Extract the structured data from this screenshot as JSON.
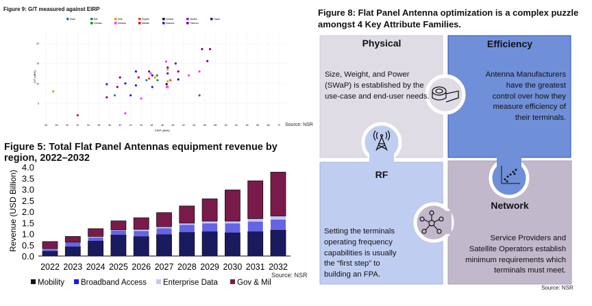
{
  "figure9": {
    "title": "Figure 9: G/T measured against EIRP",
    "source": "Source: NSR"
  },
  "figure5": {
    "title": "Figure 5: Total Flat Panel Antennas equipment revenue by region, 2022–2032",
    "source": "Source: NSR"
  },
  "figure8": {
    "title": "Figure 8: Flat Panel Antenna optimization is a complex puzzle amongst 4 Key Attribute Families.",
    "source": "Source: NSR",
    "pieces": {
      "physical": {
        "title": "Physical",
        "lines": [
          "Size, Weight, and Power",
          "(SWaP) is established by the",
          "use-case and end-user needs."
        ],
        "icon": "tape-measure-icon",
        "color": "#e0dce6"
      },
      "efficiency": {
        "title": "Efficiency",
        "lines": [
          "Antenna Manufacturers",
          "have the greatest",
          "control over how they",
          "measure efficiency of",
          "their terminals."
        ],
        "icon": "scatter-plot-icon",
        "color": "#6f8fd9"
      },
      "rf": {
        "title": "RF",
        "lines": [
          "Setting the terminals",
          "operating frequency",
          "capabilities is usually",
          "the “first step” to",
          "building an FPA."
        ],
        "icon": "antenna-tower-icon",
        "color": "#bfcdf0"
      },
      "network": {
        "title": "Network",
        "lines": [
          "Service Providers and",
          "Satellite Operators establish",
          "minimum requirements which",
          "terminals must meet."
        ],
        "icon": "network-hub-icon",
        "color": "#c1b8cb"
      }
    }
  },
  "chart_data": [
    {
      "type": "scatter",
      "title": "Figure 9: G/T measured against EIRP",
      "xlabel": "EIRP (dBW)",
      "ylabel": "G/T (dB/K)",
      "xlim": [
        26,
        70
      ],
      "ylim": [
        0,
        22
      ],
      "xticks": [
        "26",
        "28",
        "30",
        "32",
        "34",
        "36",
        "38",
        "40",
        "42",
        "44",
        "46",
        "48",
        "50",
        "52",
        "54",
        "56",
        "58",
        "60",
        "62",
        "64",
        "66",
        "68",
        "70"
      ],
      "yticks": [
        "5",
        "10",
        "15",
        "20"
      ],
      "grid": true,
      "legend": [
        {
          "name": "Alcan",
          "color": "#1f77d4"
        },
        {
          "name": "Ball",
          "color": "#009060"
        },
        {
          "name": "Cobham",
          "color": "#1a8a1a"
        },
        {
          "name": "Gilat",
          "color": "#e0a000"
        },
        {
          "name": "Hanwha",
          "color": "#ff33ff"
        },
        {
          "name": "Hughes",
          "color": "#ee4400"
        },
        {
          "name": "Intellian",
          "color": "#e8002a"
        },
        {
          "name": "Kymeta",
          "color": "#200000"
        },
        {
          "name": "Satcoms",
          "color": "#1a1aff"
        },
        {
          "name": "Starlink",
          "color": "#7a1aff"
        },
        {
          "name": "ThinKom",
          "color": "#7a007a"
        },
        {
          "name": "Viasat",
          "color": "#101aa0"
        }
      ],
      "points": [
        {
          "x": 27.4,
          "y": 8.0,
          "c": "#e0a000"
        },
        {
          "x": 32,
          "y": 2.0,
          "c": "#e8002a"
        },
        {
          "x": 37.5,
          "y": 9.8,
          "c": "#1a1aff"
        },
        {
          "x": 37.5,
          "y": 6.5,
          "c": "#7a007a"
        },
        {
          "x": 39,
          "y": 7.0,
          "c": "#009090"
        },
        {
          "x": 39.5,
          "y": 9.1,
          "c": "#7a007a"
        },
        {
          "x": 40,
          "y": 11.5,
          "c": "#7a007a"
        },
        {
          "x": 41,
          "y": 2.5,
          "c": "#ff33ff"
        },
        {
          "x": 41,
          "y": 10,
          "c": "#1a1aff"
        },
        {
          "x": 42,
          "y": 7,
          "c": "#1a1aff"
        },
        {
          "x": 43,
          "y": 13,
          "c": "#1a1aff"
        },
        {
          "x": 43,
          "y": 9.5,
          "c": "#1a1aff"
        },
        {
          "x": 43.5,
          "y": 11.5,
          "c": "#e8002a"
        },
        {
          "x": 44,
          "y": 6.2,
          "c": "#ff33ff"
        },
        {
          "x": 45,
          "y": 10.8,
          "c": "#1f77d4"
        },
        {
          "x": 45.5,
          "y": 13,
          "c": "#7a007a"
        },
        {
          "x": 45.5,
          "y": 11.2,
          "c": "#ee4400"
        },
        {
          "x": 45.8,
          "y": 12.5,
          "c": "#ff33ff"
        },
        {
          "x": 46.1,
          "y": 12,
          "c": "#101aa0"
        },
        {
          "x": 46.1,
          "y": 9.1,
          "c": "#1a1aff"
        },
        {
          "x": 46.6,
          "y": 11.5,
          "c": "#e0a000"
        },
        {
          "x": 47,
          "y": 12,
          "c": "#1a8a1a"
        },
        {
          "x": 47.1,
          "y": 10.8,
          "c": "#009060"
        },
        {
          "x": 48.7,
          "y": 15.5,
          "c": "#ff33ff"
        },
        {
          "x": 48.8,
          "y": 9.8,
          "c": "#200000"
        },
        {
          "x": 48.8,
          "y": 9.1,
          "c": "#ff33ff"
        },
        {
          "x": 49,
          "y": 9.1,
          "c": "#ff33ff"
        },
        {
          "x": 49,
          "y": 14,
          "c": "#7a007a"
        },
        {
          "x": 49,
          "y": 13.5,
          "c": "#e0a000"
        },
        {
          "x": 49,
          "y": 12.5,
          "c": "#1a1aff"
        },
        {
          "x": 49,
          "y": 10.5,
          "c": "#e0a000"
        },
        {
          "x": 49.5,
          "y": 10.8,
          "c": "#ee4400"
        },
        {
          "x": 50.5,
          "y": 15,
          "c": "#7a007a"
        },
        {
          "x": 51,
          "y": 13,
          "c": "#7a007a"
        },
        {
          "x": 51,
          "y": 11,
          "c": "#101aa0"
        },
        {
          "x": 53,
          "y": 12,
          "c": "#ff33ff"
        },
        {
          "x": 55,
          "y": 13,
          "c": "#ff33ff"
        },
        {
          "x": 55,
          "y": 7,
          "c": "#1a8a1a"
        },
        {
          "x": 55.5,
          "y": 18.6,
          "c": "#7a007a"
        },
        {
          "x": 56.5,
          "y": 15.6,
          "c": "#7a007a"
        },
        {
          "x": 57,
          "y": 18.6,
          "c": "#7a007a"
        }
      ]
    },
    {
      "type": "bar",
      "stacked": true,
      "title": "Figure 5: Total Flat Panel Antennas equipment revenue by region, 2022–2032",
      "xlabel": "",
      "ylabel": "Revenue (USD Billion)",
      "ylim": [
        0,
        4.0
      ],
      "yticks": [
        "0.0",
        "0.5",
        "1.0",
        "1.5",
        "2.0",
        "2.5",
        "3.0",
        "3.5",
        "4.0"
      ],
      "categories": [
        "2022",
        "2023",
        "2024",
        "2025",
        "2026",
        "2027",
        "2028",
        "2029",
        "2030",
        "2031",
        "2032"
      ],
      "legend_position": "bottom",
      "series": [
        {
          "name": "Mobility",
          "color": "#1a1a5e",
          "values": [
            0.22,
            0.42,
            0.68,
            0.95,
            0.88,
            0.97,
            1.07,
            1.1,
            1.05,
            1.1,
            1.17
          ]
        },
        {
          "name": "Broadband Access",
          "color": "#6464e6",
          "values": [
            0.08,
            0.18,
            0.15,
            0.2,
            0.25,
            0.28,
            0.33,
            0.37,
            0.42,
            0.45,
            0.47
          ]
        },
        {
          "name": "Enterprise Data",
          "color": "#c6c6f4",
          "values": [
            0.03,
            0.02,
            0.05,
            0.03,
            0.07,
            0.07,
            0.08,
            0.1,
            0.1,
            0.13,
            0.16
          ]
        },
        {
          "name": "Gov & Mil",
          "color": "#7a1a4a",
          "values": [
            0.32,
            0.26,
            0.35,
            0.4,
            0.52,
            0.63,
            0.77,
            1.0,
            1.4,
            1.7,
            1.97
          ]
        }
      ]
    }
  ]
}
